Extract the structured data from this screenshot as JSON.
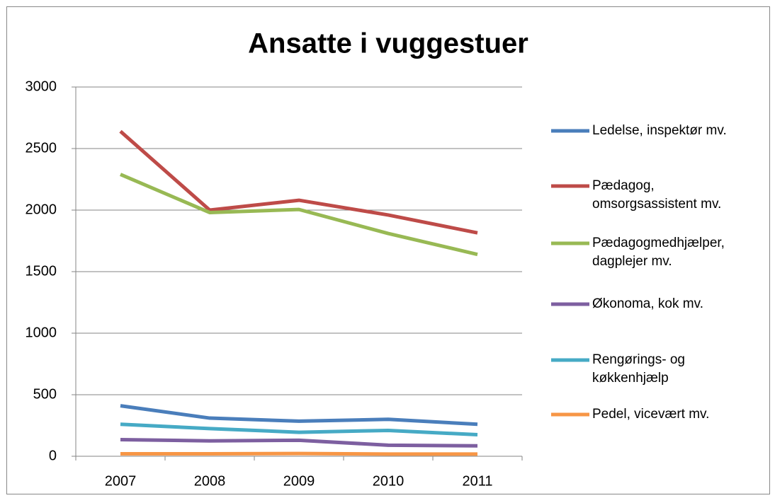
{
  "chart_data": {
    "type": "line",
    "title": "Ansatte i vuggestuer",
    "categories": [
      "2007",
      "2008",
      "2009",
      "2010",
      "2011"
    ],
    "series": [
      {
        "name": "Ledelse, inspektør mv.",
        "color": "#4a7ebb",
        "values": [
          410,
          310,
          285,
          300,
          260
        ]
      },
      {
        "name": "Pædagog, omsorgsassistent mv.",
        "color": "#be4b48",
        "values": [
          2640,
          2000,
          2080,
          1960,
          1815
        ]
      },
      {
        "name": "Pædagogmedhjælper, dagplejer mv.",
        "color": "#98b954",
        "values": [
          2290,
          1980,
          2005,
          1810,
          1640
        ]
      },
      {
        "name": "Økonoma, kok mv.",
        "color": "#7d5fa0",
        "values": [
          135,
          125,
          130,
          90,
          85
        ]
      },
      {
        "name": "Rengørings- og køkkenhjælp",
        "color": "#46aac5",
        "values": [
          260,
          225,
          195,
          210,
          175
        ]
      },
      {
        "name": "Pedel, vicevært mv.",
        "color": "#f79646",
        "values": [
          20,
          20,
          22,
          18,
          18
        ]
      }
    ],
    "ylim": [
      0,
      3000
    ],
    "yticks": [
      0,
      500,
      1000,
      1500,
      2000,
      2500,
      3000
    ],
    "grid": true,
    "legend": "right"
  }
}
